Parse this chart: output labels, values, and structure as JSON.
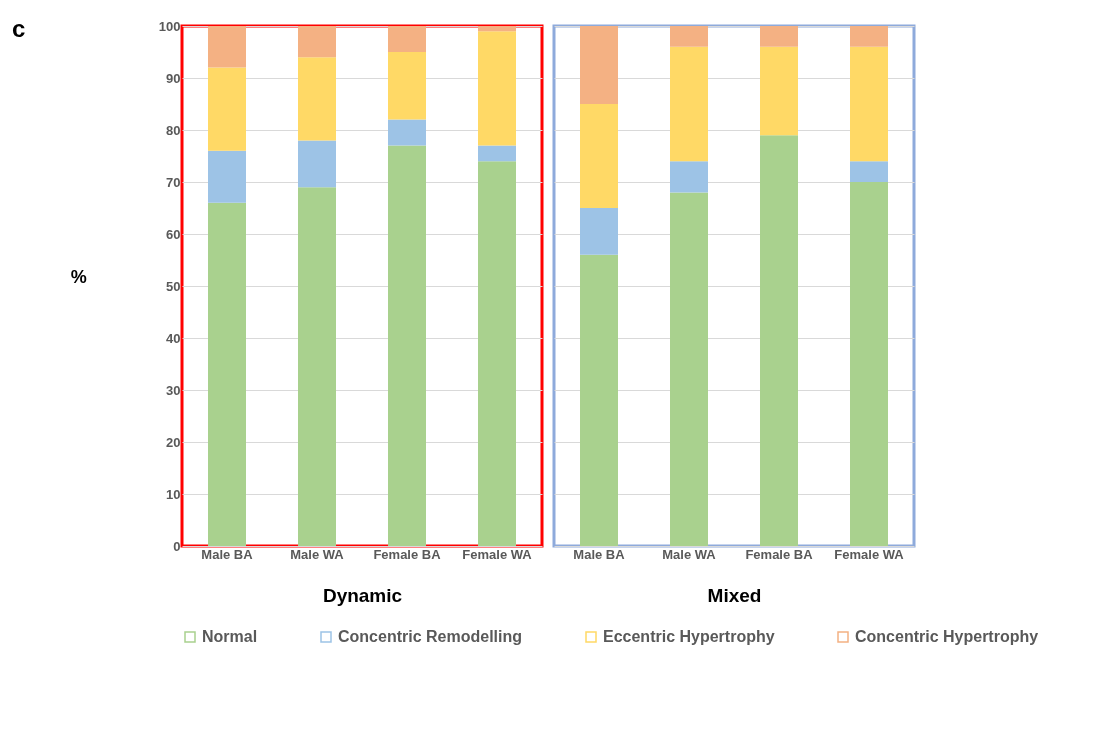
{
  "chart_data": [
    {
      "type": "bar",
      "stacked": true,
      "xlabel": "Dynamic",
      "ylabel": "%",
      "annotations": [
        "c"
      ],
      "categories": [
        "Male BA",
        "Male WA",
        "Female BA",
        "Female WA"
      ],
      "series": [
        {
          "name": "Normal",
          "color": "#a9d18e",
          "values": [
            66,
            69,
            77,
            74
          ]
        },
        {
          "name": "Concentric Remodelling",
          "color": "#9dc3e6",
          "values": [
            10,
            9,
            5,
            3
          ]
        },
        {
          "name": "Eccentric Hypertrophy",
          "color": "#ffd966",
          "values": [
            16,
            16,
            13,
            22
          ]
        },
        {
          "name": "Concentric Hypertrophy",
          "color": "#f4b183",
          "values": [
            8,
            6,
            5,
            1
          ]
        }
      ],
      "ylim": [
        0,
        100
      ],
      "yticks": [
        0,
        10,
        20,
        30,
        40,
        50,
        60,
        70,
        80,
        90,
        100
      ],
      "grid": "y",
      "legend": "bottom"
    },
    {
      "type": "bar",
      "stacked": true,
      "xlabel": "Mixed",
      "categories": [
        "Male BA",
        "Male WA",
        "Female BA",
        "Female WA"
      ],
      "series": [
        {
          "name": "Normal",
          "color": "#a9d18e",
          "values": [
            56,
            68,
            79,
            70
          ]
        },
        {
          "name": "Concentric Remodelling",
          "color": "#9dc3e6",
          "values": [
            9,
            6,
            0,
            4
          ]
        },
        {
          "name": "Eccentric Hypertrophy",
          "color": "#ffd966",
          "values": [
            20,
            22,
            17,
            22
          ]
        },
        {
          "name": "Concentric Hypertrophy",
          "color": "#f4b183",
          "values": [
            15,
            4,
            4,
            4
          ]
        }
      ],
      "ylim": [
        0,
        100
      ],
      "yticks": [
        0,
        10,
        20,
        30,
        40,
        50,
        60,
        70,
        80,
        90,
        100
      ],
      "grid": "y",
      "legend": "bottom",
      "tick_labels": "x"
    }
  ]
}
